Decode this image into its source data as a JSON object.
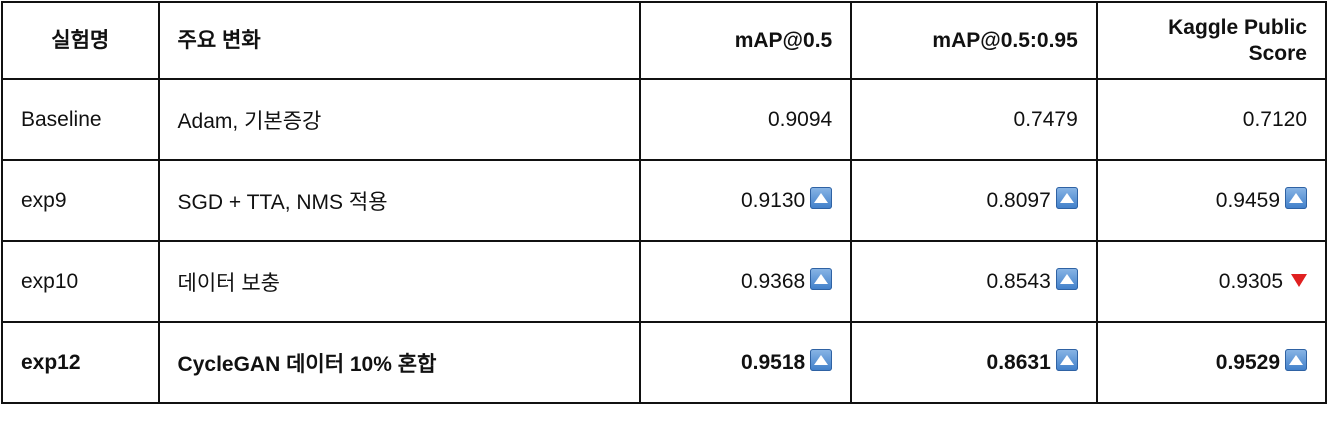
{
  "headers": [
    "실험명",
    "주요 변화",
    "mAP@0.5",
    "mAP@0.5:0.95",
    "Kaggle Public\nScore"
  ],
  "rows": [
    {
      "name": "Baseline",
      "change": "Adam, 기본증강",
      "map50": "0.9094",
      "map50_ind": "",
      "map5095": "0.7479",
      "map5095_ind": "",
      "kaggle": "0.7120",
      "kaggle_ind": "",
      "bold": false
    },
    {
      "name": "exp9",
      "change": "SGD + TTA, NMS 적용",
      "map50": "0.9130",
      "map50_ind": "up-arrow-icon",
      "map5095": "0.8097",
      "map5095_ind": "up-arrow-icon",
      "kaggle": "0.9459",
      "kaggle_ind": "up-arrow-icon",
      "bold": false
    },
    {
      "name": "exp10",
      "change": "데이터 보충",
      "map50": "0.9368",
      "map50_ind": "up-arrow-icon",
      "map5095": "0.8543",
      "map5095_ind": "up-arrow-icon",
      "kaggle": "0.9305",
      "kaggle_ind": "down-arrow-icon",
      "bold": false
    },
    {
      "name": "exp12",
      "change": "CycleGAN 데이터 10% 혼합",
      "map50": "0.9518",
      "map50_ind": "up-arrow-icon",
      "map5095": "0.8631",
      "map5095_ind": "up-arrow-icon",
      "kaggle": "0.9529",
      "kaggle_ind": "up-arrow-icon",
      "bold": true
    }
  ],
  "colors": {
    "up_indicator": "#3f7ec9",
    "down_indicator": "#e02020",
    "border": "#111111"
  }
}
